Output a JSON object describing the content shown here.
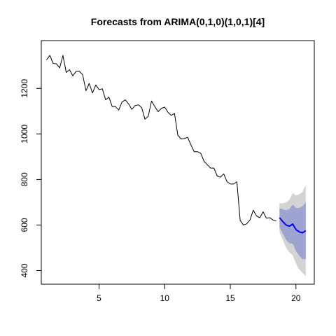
{
  "chart_data": {
    "type": "line",
    "title": "Forecasts from ARIMA(0,1,0)(1,0,1)[4]",
    "xlabel": "",
    "ylabel": "",
    "xlim": [
      0.6,
      21.4
    ],
    "ylim": [
      340,
      1410
    ],
    "x_ticks": [
      5,
      10,
      15,
      20
    ],
    "y_ticks": [
      400,
      600,
      800,
      1000,
      1200
    ],
    "grid": false,
    "legend": "none",
    "series": [
      {
        "role": "observed",
        "color": "#000000",
        "x": [
          1.0,
          1.25,
          1.5,
          1.75,
          2.0,
          2.25,
          2.5,
          2.75,
          3.0,
          3.25,
          3.5,
          3.75,
          4.0,
          4.25,
          4.5,
          4.75,
          5.0,
          5.25,
          5.5,
          5.75,
          6.0,
          6.25,
          6.5,
          6.75,
          7.0,
          7.25,
          7.5,
          7.75,
          8.0,
          8.25,
          8.5,
          8.75,
          9.0,
          9.25,
          9.5,
          9.75,
          10.0,
          10.25,
          10.5,
          10.75,
          11.0,
          11.25,
          11.5,
          11.75,
          12.0,
          12.25,
          12.5,
          12.75,
          13.0,
          13.25,
          13.5,
          13.75,
          14.0,
          14.25,
          14.5,
          14.75,
          15.0,
          15.25,
          15.5,
          15.75,
          16.0,
          16.25,
          16.5,
          16.75,
          17.0,
          17.25,
          17.5,
          17.75,
          18.0,
          18.25,
          18.5
        ],
        "values": [
          1325,
          1345,
          1310,
          1308,
          1290,
          1345,
          1270,
          1282,
          1255,
          1275,
          1275,
          1260,
          1190,
          1222,
          1180,
          1215,
          1195,
          1198,
          1150,
          1162,
          1120,
          1120,
          1105,
          1140,
          1150,
          1132,
          1108,
          1125,
          1128,
          1115,
          1065,
          1078,
          1145,
          1120,
          1098,
          1112,
          1118,
          1095,
          1082,
          1090,
          995,
          978,
          980,
          985,
          952,
          922,
          922,
          915,
          880,
          865,
          850,
          850,
          815,
          810,
          825,
          790,
          780,
          780,
          790,
          620,
          600,
          605,
          622,
          665,
          640,
          632,
          658,
          630,
          632,
          622,
          618
        ]
      },
      {
        "role": "forecast_mean",
        "color": "#0000ff",
        "x": [
          18.75,
          19.0,
          19.25,
          19.5,
          19.75,
          20.0,
          20.25,
          20.5,
          20.75
        ],
        "values": [
          632,
          615,
          600,
          595,
          604,
          580,
          570,
          566,
          575
        ]
      },
      {
        "role": "interval_80",
        "color": "#9fa3d2",
        "x": [
          18.75,
          19.0,
          19.25,
          19.5,
          19.75,
          20.0,
          20.25,
          20.5,
          20.75
        ],
        "lower": [
          590,
          562,
          535,
          520,
          518,
          485,
          465,
          450,
          450
        ],
        "upper": [
          674,
          668,
          665,
          670,
          690,
          675,
          675,
          682,
          700
        ]
      },
      {
        "role": "interval_95",
        "color": "#d3d3d3",
        "x": [
          18.75,
          19.0,
          19.25,
          19.5,
          19.75,
          20.0,
          20.25,
          20.5,
          20.75
        ],
        "lower": [
          568,
          535,
          500,
          480,
          468,
          430,
          405,
          390,
          375
        ],
        "upper": [
          696,
          695,
          700,
          710,
          740,
          730,
          735,
          745,
          775
        ]
      }
    ]
  }
}
